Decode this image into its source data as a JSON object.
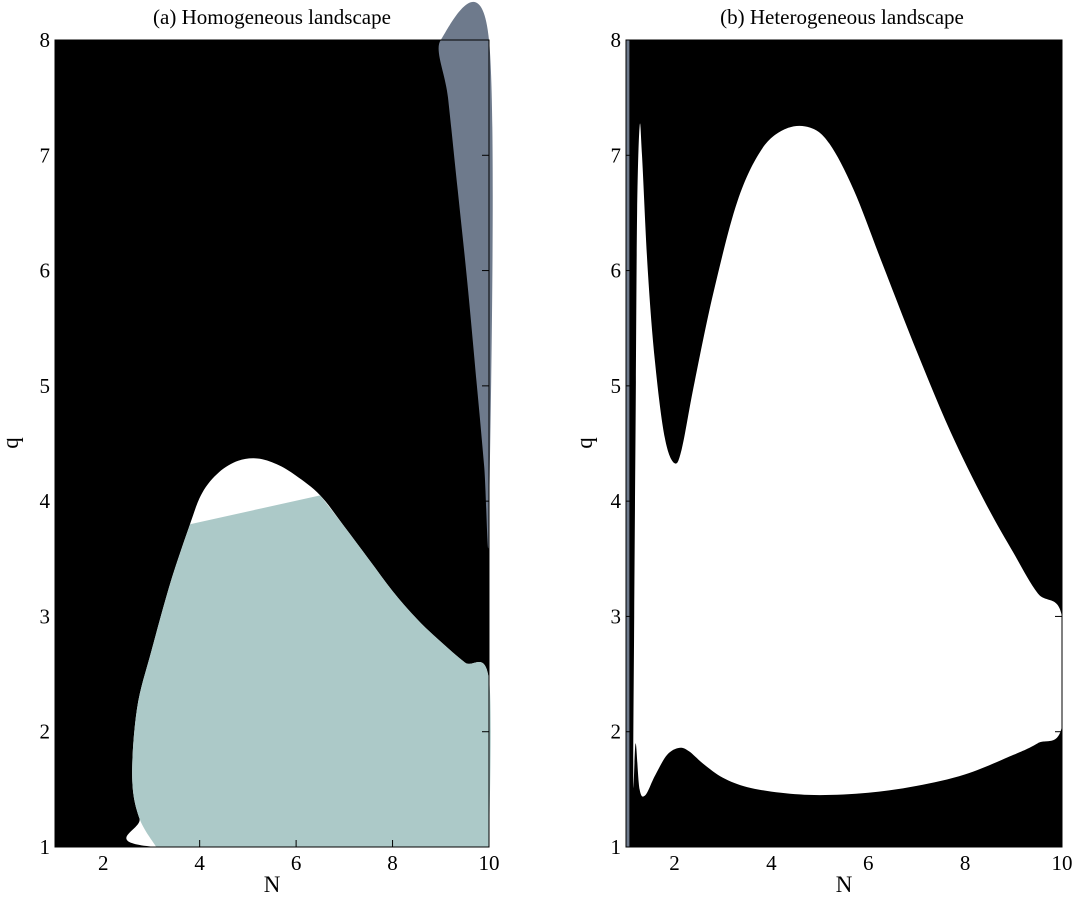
{
  "chart_data": [
    {
      "type": "heatmap",
      "title": "(a) Homogeneous landscape",
      "xlabel": "N",
      "ylabel": "q",
      "xlim": [
        1,
        10
      ],
      "ylim": [
        1,
        8
      ],
      "xticks": [
        2,
        4,
        6,
        8,
        10
      ],
      "yticks": [
        1,
        2,
        3,
        4,
        5,
        6,
        7,
        8
      ],
      "grid": false,
      "background_color": "#000000",
      "regions": [
        {
          "color": "#ffffff",
          "boundary": [
            [
              3.1,
              1.0
            ],
            [
              2.75,
              1.25
            ],
            [
              2.6,
              1.6
            ],
            [
              2.7,
              2.2
            ],
            [
              3.0,
              2.7
            ],
            [
              3.4,
              3.3
            ],
            [
              3.8,
              3.8
            ],
            [
              4.05,
              4.07
            ],
            [
              4.4,
              4.25
            ],
            [
              4.8,
              4.35
            ],
            [
              5.2,
              4.37
            ],
            [
              5.6,
              4.32
            ],
            [
              6.0,
              4.22
            ],
            [
              6.5,
              4.05
            ],
            [
              7.0,
              3.78
            ],
            [
              7.5,
              3.5
            ],
            [
              8.0,
              3.22
            ],
            [
              8.5,
              2.98
            ],
            [
              9.0,
              2.78
            ],
            [
              9.5,
              2.6
            ],
            [
              10.0,
              2.45
            ],
            [
              10.0,
              1.0
            ]
          ]
        },
        {
          "color": "#acc9c8",
          "boundary": [
            [
              3.1,
              1.0
            ],
            [
              2.75,
              1.25
            ],
            [
              2.6,
              1.6
            ],
            [
              2.7,
              2.2
            ],
            [
              3.0,
              2.7
            ],
            [
              3.4,
              3.3
            ],
            [
              3.8,
              3.8
            ],
            [
              4.05,
              4.05
            ],
            [
              6.5,
              4.05
            ],
            [
              7.0,
              3.78
            ],
            [
              7.5,
              3.5
            ],
            [
              8.0,
              3.22
            ],
            [
              8.5,
              2.98
            ],
            [
              9.0,
              2.78
            ],
            [
              9.5,
              2.6
            ],
            [
              10.0,
              2.45
            ],
            [
              10.0,
              1.0
            ]
          ]
        },
        {
          "color": "#6e7a8c",
          "boundary": [
            [
              9.0,
              8.0
            ],
            [
              10.0,
              8.0
            ],
            [
              10.0,
              3.8
            ],
            [
              9.9,
              4.3
            ],
            [
              9.75,
              5.0
            ],
            [
              9.55,
              5.9
            ],
            [
              9.35,
              6.7
            ],
            [
              9.15,
              7.5
            ]
          ]
        }
      ]
    },
    {
      "type": "heatmap",
      "title": "(b) Heterogeneous landscape",
      "xlabel": "N",
      "ylabel": "q",
      "xlim": [
        1,
        10
      ],
      "ylim": [
        1,
        8
      ],
      "xticks": [
        2,
        4,
        6,
        8,
        10
      ],
      "yticks": [
        1,
        2,
        3,
        4,
        5,
        6,
        7,
        8
      ],
      "grid": false,
      "background_color": "#000000",
      "regions": [
        {
          "color": "#ffffff",
          "boundary": [
            [
              1.15,
              1.55
            ],
            [
              1.17,
              3.0
            ],
            [
              1.2,
              4.8
            ],
            [
              1.23,
              6.5
            ],
            [
              1.28,
              7.25
            ],
            [
              1.33,
              7.0
            ],
            [
              1.45,
              6.0
            ],
            [
              1.6,
              5.2
            ],
            [
              1.8,
              4.55
            ],
            [
              2.0,
              4.33
            ],
            [
              2.15,
              4.45
            ],
            [
              2.4,
              5.0
            ],
            [
              2.8,
              5.8
            ],
            [
              3.3,
              6.6
            ],
            [
              3.8,
              7.05
            ],
            [
              4.3,
              7.23
            ],
            [
              4.8,
              7.24
            ],
            [
              5.2,
              7.1
            ],
            [
              5.7,
              6.7
            ],
            [
              6.3,
              6.05
            ],
            [
              7.0,
              5.3
            ],
            [
              7.7,
              4.6
            ],
            [
              8.4,
              4.0
            ],
            [
              9.0,
              3.55
            ],
            [
              9.5,
              3.2
            ],
            [
              10.0,
              3.0
            ],
            [
              10.0,
              2.05
            ],
            [
              9.5,
              1.9
            ],
            [
              9.0,
              1.8
            ],
            [
              8.0,
              1.63
            ],
            [
              7.0,
              1.53
            ],
            [
              6.0,
              1.47
            ],
            [
              5.0,
              1.45
            ],
            [
              4.2,
              1.47
            ],
            [
              3.5,
              1.52
            ],
            [
              3.0,
              1.6
            ],
            [
              2.6,
              1.72
            ],
            [
              2.3,
              1.83
            ],
            [
              2.1,
              1.86
            ],
            [
              1.85,
              1.8
            ],
            [
              1.6,
              1.62
            ],
            [
              1.4,
              1.45
            ],
            [
              1.28,
              1.5
            ],
            [
              1.2,
              1.9
            ]
          ]
        },
        {
          "color": "#6e7a8c",
          "boundary": [
            [
              1.0,
              1.0
            ],
            [
              1.07,
              1.0
            ],
            [
              1.07,
              8.0
            ],
            [
              1.0,
              8.0
            ]
          ]
        }
      ]
    }
  ]
}
